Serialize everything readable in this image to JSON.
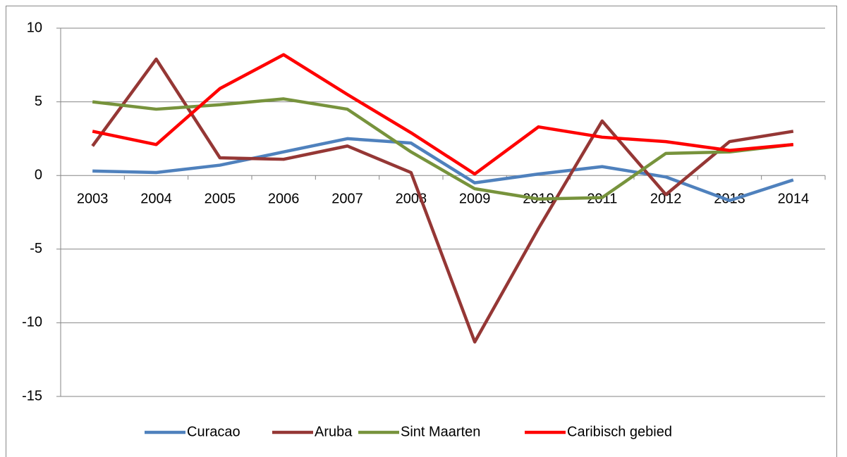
{
  "chart_data": {
    "type": "line",
    "categories": [
      "2003",
      "2004",
      "2005",
      "2006",
      "2007",
      "2008",
      "2009",
      "2010",
      "2011",
      "2012",
      "2013",
      "2014"
    ],
    "series": [
      {
        "name": "Curacao",
        "color": "#4f81bd",
        "values": [
          0.3,
          0.2,
          0.7,
          1.6,
          2.5,
          2.2,
          -0.5,
          0.1,
          0.6,
          -0.1,
          -1.7,
          -0.3
        ]
      },
      {
        "name": "Aruba",
        "color": "#953735",
        "values": [
          2.0,
          7.9,
          1.2,
          1.1,
          2.0,
          0.2,
          -11.3,
          -3.6,
          3.7,
          -1.3,
          2.3,
          3.0
        ]
      },
      {
        "name": "Sint Maarten",
        "color": "#77933c",
        "values": [
          5.0,
          4.5,
          4.8,
          5.2,
          4.5,
          1.6,
          -0.9,
          -1.6,
          -1.5,
          1.5,
          1.6,
          2.1
        ]
      },
      {
        "name": "Caribisch gebied",
        "color": "#ff0000",
        "values": [
          3.0,
          2.1,
          5.9,
          8.2,
          5.5,
          2.9,
          0.1,
          3.3,
          2.6,
          2.3,
          1.7,
          2.1
        ]
      }
    ],
    "ylim": [
      -15,
      10
    ],
    "yticks": [
      -15,
      -10,
      -5,
      0,
      5,
      10
    ],
    "grid": true,
    "legend": "bottom"
  }
}
